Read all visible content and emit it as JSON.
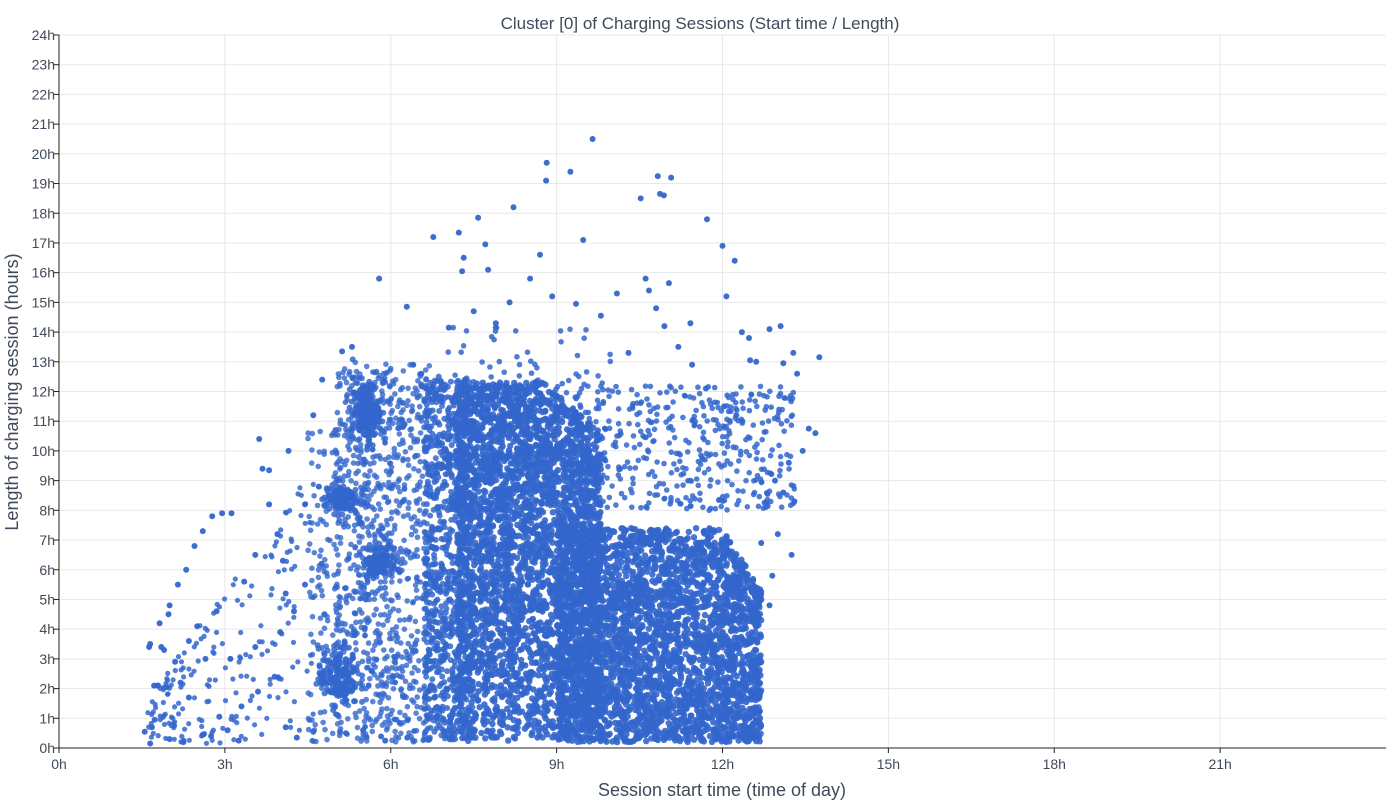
{
  "chart_data": {
    "type": "scatter",
    "title": "Cluster [0] of Charging Sessions (Start time / Length)",
    "xlabel": "Session start time (time of day)",
    "ylabel": "Length of charging session (hours)",
    "xlim": [
      0,
      24
    ],
    "ylim": [
      0,
      24
    ],
    "x_ticks": [
      0,
      3,
      6,
      9,
      12,
      15,
      18,
      21
    ],
    "x_tick_labels": [
      "0h",
      "3h",
      "6h",
      "9h",
      "12h",
      "15h",
      "18h",
      "21h"
    ],
    "y_ticks": [
      0,
      1,
      2,
      3,
      4,
      5,
      6,
      7,
      8,
      9,
      10,
      11,
      12,
      13,
      14,
      15,
      16,
      17,
      18,
      19,
      20,
      21,
      22,
      23,
      24
    ],
    "y_tick_labels": [
      "0h",
      "1h",
      "2h",
      "3h",
      "4h",
      "5h",
      "6h",
      "7h",
      "8h",
      "9h",
      "10h",
      "11h",
      "12h",
      "13h",
      "14h",
      "15h",
      "16h",
      "17h",
      "18h",
      "19h",
      "20h",
      "21h",
      "22h",
      "23h",
      "24h"
    ],
    "grid": true,
    "marker_color": "#3366cc",
    "series": [
      {
        "points": [
          [
            9.65,
            20.5
          ],
          [
            8.82,
            19.7
          ],
          [
            8.81,
            19.1
          ],
          [
            9.25,
            19.4
          ],
          [
            10.83,
            19.25
          ],
          [
            11.07,
            19.2
          ],
          [
            10.87,
            18.65
          ],
          [
            10.52,
            18.5
          ],
          [
            10.94,
            18.6
          ],
          [
            8.22,
            18.2
          ],
          [
            11.72,
            17.8
          ],
          [
            7.58,
            17.85
          ],
          [
            6.77,
            17.2
          ],
          [
            7.23,
            17.35
          ],
          [
            7.71,
            16.95
          ],
          [
            9.48,
            17.1
          ],
          [
            12.0,
            16.9
          ],
          [
            12.22,
            16.4
          ],
          [
            7.32,
            16.5
          ],
          [
            7.76,
            16.1
          ],
          [
            7.29,
            16.05
          ],
          [
            8.7,
            16.6
          ],
          [
            5.79,
            15.8
          ],
          [
            8.52,
            15.8
          ],
          [
            10.61,
            15.8
          ],
          [
            11.03,
            15.65
          ],
          [
            10.09,
            15.3
          ],
          [
            12.07,
            15.2
          ],
          [
            6.29,
            14.85
          ],
          [
            10.67,
            15.4
          ],
          [
            12.85,
            14.1
          ],
          [
            13.05,
            14.2
          ],
          [
            11.42,
            14.3
          ],
          [
            12.35,
            14.0
          ],
          [
            10.95,
            14.2
          ],
          [
            13.28,
            13.3
          ],
          [
            13.75,
            13.15
          ],
          [
            13.1,
            12.95
          ],
          [
            12.5,
            13.05
          ],
          [
            13.35,
            12.6
          ],
          [
            12.48,
            13.8
          ],
          [
            12.61,
            13.0
          ],
          [
            13.68,
            10.6
          ],
          [
            13.56,
            10.75
          ],
          [
            13.3,
            8.3
          ],
          [
            5.3,
            13.5
          ],
          [
            5.12,
            13.35
          ],
          [
            4.76,
            12.4
          ],
          [
            4.6,
            11.2
          ],
          [
            3.62,
            10.4
          ],
          [
            4.15,
            10.0
          ],
          [
            3.8,
            9.35
          ],
          [
            3.68,
            9.4
          ],
          [
            2.95,
            7.9
          ],
          [
            2.77,
            7.8
          ],
          [
            3.12,
            7.9
          ],
          [
            2.6,
            7.3
          ],
          [
            2.45,
            6.8
          ],
          [
            2.3,
            6.0
          ],
          [
            2.15,
            5.5
          ],
          [
            2.0,
            4.8
          ],
          [
            1.98,
            4.5
          ],
          [
            1.82,
            4.2
          ],
          [
            1.65,
            3.5
          ],
          [
            1.63,
            3.4
          ],
          [
            1.85,
            3.4
          ],
          [
            1.9,
            3.3
          ],
          [
            2.1,
            2.9
          ],
          [
            2.2,
            2.2
          ],
          [
            1.78,
            2.1
          ],
          [
            1.72,
            2.1
          ],
          [
            1.95,
            2.05
          ],
          [
            2.35,
            1.7
          ],
          [
            1.68,
            0.7
          ],
          [
            1.55,
            0.55
          ],
          [
            1.73,
            0.95
          ],
          [
            1.65,
            0.15
          ],
          [
            2.0,
            0.3
          ],
          [
            2.25,
            0.2
          ],
          [
            2.75,
            0.4
          ],
          [
            2.9,
            1.05
          ],
          [
            3.25,
            0.25
          ],
          [
            2.6,
            0.45
          ],
          [
            3.05,
            0.6
          ],
          [
            3.3,
            1.4
          ],
          [
            3.1,
            3.0
          ],
          [
            3.6,
            1.9
          ],
          [
            3.55,
            3.4
          ],
          [
            4.3,
            0.35
          ],
          [
            4.6,
            0.55
          ],
          [
            4.1,
            0.7
          ],
          [
            3.9,
            2.4
          ],
          [
            4.0,
            3.9
          ],
          [
            4.25,
            4.6
          ],
          [
            4.45,
            5.5
          ],
          [
            4.05,
            6.3
          ],
          [
            3.35,
            5.6
          ],
          [
            3.55,
            6.5
          ],
          [
            2.85,
            4.6
          ],
          [
            2.5,
            4.1
          ],
          [
            2.35,
            3.6
          ],
          [
            2.65,
            3.0
          ],
          [
            3.8,
            8.2
          ],
          [
            4.45,
            8.2
          ],
          [
            4.7,
            8.8
          ],
          [
            3.95,
            7.2
          ],
          [
            4.1,
            5.2
          ],
          [
            4.8,
            4.5
          ],
          [
            4.9,
            2.2
          ],
          [
            5.2,
            1.6
          ],
          [
            4.75,
            6.2
          ],
          [
            5.45,
            7.6
          ],
          [
            6.4,
            12.9
          ],
          [
            6.55,
            12.6
          ],
          [
            5.0,
            10.7
          ],
          [
            6.25,
            10.9
          ],
          [
            6.0,
            9.3
          ],
          [
            5.85,
            7.4
          ],
          [
            6.12,
            6.0
          ],
          [
            5.55,
            5.0
          ],
          [
            5.35,
            3.8
          ],
          [
            5.65,
            2.6
          ],
          [
            5.5,
            0.6
          ],
          [
            5.9,
            0.25
          ],
          [
            6.3,
            0.35
          ],
          [
            6.7,
            0.3
          ],
          [
            13.2,
            9.6
          ],
          [
            13.1,
            8.6
          ],
          [
            12.95,
            9.0
          ],
          [
            13.45,
            10.0
          ],
          [
            13.25,
            6.5
          ],
          [
            13.0,
            7.2
          ],
          [
            12.9,
            5.8
          ],
          [
            12.7,
            6.9
          ],
          [
            12.85,
            4.8
          ],
          [
            12.6,
            4.2
          ],
          [
            12.3,
            4.4
          ],
          [
            12.45,
            3.1
          ],
          [
            12.2,
            2.2
          ],
          [
            12.1,
            1.6
          ],
          [
            11.9,
            0.6
          ],
          [
            12.0,
            0.3
          ],
          [
            12.25,
            11.2
          ],
          [
            12.52,
            11.9
          ],
          [
            11.7,
            12.1
          ],
          [
            11.45,
            12.9
          ],
          [
            11.2,
            13.5
          ],
          [
            10.8,
            14.8
          ],
          [
            10.3,
            13.3
          ],
          [
            9.8,
            14.55
          ],
          [
            9.35,
            14.95
          ],
          [
            8.92,
            15.2
          ],
          [
            8.15,
            15.0
          ],
          [
            7.9,
            14.3
          ],
          [
            7.5,
            14.7
          ],
          [
            7.05,
            14.15
          ]
        ],
        "cloud": {
          "main_x_range": [
            6.6,
            13.1
          ],
          "main_y_range": [
            0.15,
            12.8
          ],
          "density_note": "dense core 7.2h-12.7h start, 0-12h length"
        }
      }
    ]
  }
}
